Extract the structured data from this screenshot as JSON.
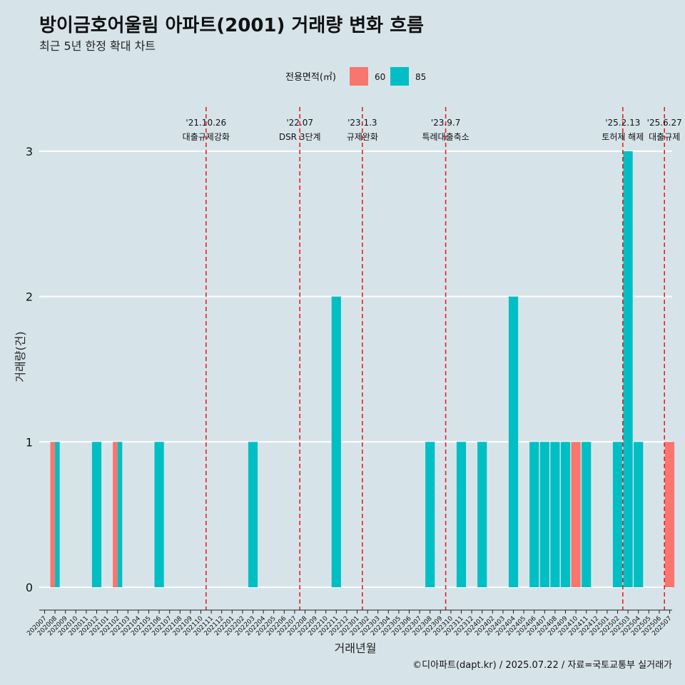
{
  "chart_data": {
    "type": "bar",
    "title": "방이금호어울림 아파트(2001) 거래량 변화 흐름",
    "subtitle": "최근 5년 한정 확대 차트",
    "xlabel": "거래년월",
    "ylabel": "거래량(건)",
    "ylim": [
      0,
      3
    ],
    "yticks": [
      0,
      1,
      2,
      3
    ],
    "legend": {
      "title": "전용면적(㎡)",
      "position": "top"
    },
    "categories": [
      "202007",
      "202008",
      "202009",
      "202010",
      "202011",
      "202012",
      "202101",
      "202102",
      "202103",
      "202104",
      "202105",
      "202106",
      "202107",
      "202108",
      "202109",
      "202110",
      "202111",
      "202112",
      "202201",
      "202202",
      "202203",
      "202204",
      "202205",
      "202206",
      "202207",
      "202208",
      "202209",
      "202210",
      "202211",
      "202212",
      "202301",
      "202302",
      "202303",
      "202304",
      "202305",
      "202306",
      "202307",
      "202308",
      "202309",
      "202310",
      "202311",
      "202312",
      "202401",
      "202402",
      "202403",
      "202404",
      "202405",
      "202406",
      "202407",
      "202408",
      "202409",
      "202410",
      "202411",
      "202412",
      "202501",
      "202502",
      "202503",
      "202504",
      "202505",
      "202506",
      "202507"
    ],
    "series": [
      {
        "name": "60",
        "color": "#f8766d",
        "values": [
          0,
          1,
          0,
          0,
          0,
          0,
          0,
          1,
          0,
          0,
          0,
          0,
          0,
          0,
          0,
          0,
          0,
          0,
          0,
          0,
          0,
          0,
          0,
          0,
          0,
          0,
          0,
          0,
          0,
          0,
          0,
          0,
          0,
          0,
          0,
          0,
          0,
          0,
          0,
          0,
          0,
          0,
          0,
          0,
          0,
          0,
          0,
          0,
          0,
          0,
          0,
          1,
          0,
          0,
          0,
          0,
          0,
          0,
          0,
          0,
          1
        ]
      },
      {
        "name": "85",
        "color": "#00bfc4",
        "values": [
          0,
          1,
          0,
          0,
          0,
          1,
          0,
          1,
          0,
          0,
          0,
          1,
          0,
          0,
          0,
          0,
          0,
          0,
          0,
          0,
          1,
          0,
          0,
          0,
          0,
          0,
          0,
          0,
          2,
          0,
          0,
          0,
          0,
          0,
          0,
          0,
          0,
          1,
          0,
          0,
          1,
          0,
          1,
          0,
          0,
          2,
          0,
          1,
          1,
          1,
          1,
          0,
          1,
          0,
          0,
          1,
          3,
          1,
          0,
          0,
          0
        ]
      }
    ],
    "annotations": [
      {
        "category": "202110",
        "date": "'21.10.26",
        "label": "대출규제강화",
        "style": "dashed"
      },
      {
        "category": "202207",
        "date": "'22.07",
        "label": "DSR 3단계",
        "style": "dashed"
      },
      {
        "category": "202301",
        "date": "'23.1.3",
        "label": "규제완화",
        "style": "dashed"
      },
      {
        "category": "202309",
        "date": "'23.9.7",
        "label": "특례대출축소",
        "style": "dashed"
      },
      {
        "category": "202502",
        "date": "'25.2.13",
        "label": "토허제 해제",
        "style": "dashed"
      },
      {
        "category": "202506",
        "date": "'25.6.27",
        "label": "대출규제",
        "style": "dashed"
      }
    ],
    "caption": "©디아파트(dapt.kr) / 2025.07.22 / 자료=국토교통부 실거래가",
    "grid": true
  }
}
